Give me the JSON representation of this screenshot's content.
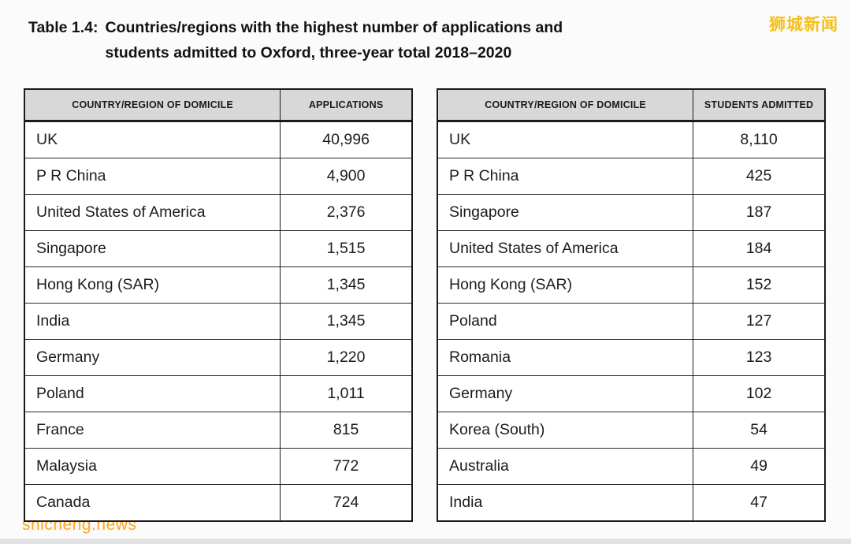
{
  "title": {
    "label": "Table 1.4:",
    "line1": "Countries/regions with the highest number of applications and",
    "line2": "students admitted to Oxford, three-year total 2018–2020"
  },
  "watermarks": {
    "top_right": "狮城新闻",
    "bottom_left": "shicheng.news"
  },
  "tables": [
    {
      "name": "applications",
      "headers": [
        "COUNTRY/REGION OF DOMICILE",
        "APPLICATIONS"
      ],
      "rows": [
        [
          "UK",
          "40,996"
        ],
        [
          "P R China",
          "4,900"
        ],
        [
          "United States of America",
          "2,376"
        ],
        [
          "Singapore",
          "1,515"
        ],
        [
          "Hong Kong (SAR)",
          "1,345"
        ],
        [
          "India",
          "1,345"
        ],
        [
          "Germany",
          "1,220"
        ],
        [
          "Poland",
          "1,011"
        ],
        [
          "France",
          "815"
        ],
        [
          "Malaysia",
          "772"
        ],
        [
          "Canada",
          "724"
        ]
      ]
    },
    {
      "name": "students_admitted",
      "headers": [
        "COUNTRY/REGION OF DOMICILE",
        "STUDENTS ADMITTED"
      ],
      "rows": [
        [
          "UK",
          "8,110"
        ],
        [
          "P R China",
          "425"
        ],
        [
          "Singapore",
          "187"
        ],
        [
          "United States of America",
          "184"
        ],
        [
          "Hong Kong (SAR)",
          "152"
        ],
        [
          "Poland",
          "127"
        ],
        [
          "Romania",
          "123"
        ],
        [
          "Germany",
          "102"
        ],
        [
          "Korea (South)",
          "54"
        ],
        [
          "Australia",
          "49"
        ],
        [
          "India",
          "47"
        ]
      ]
    }
  ]
}
